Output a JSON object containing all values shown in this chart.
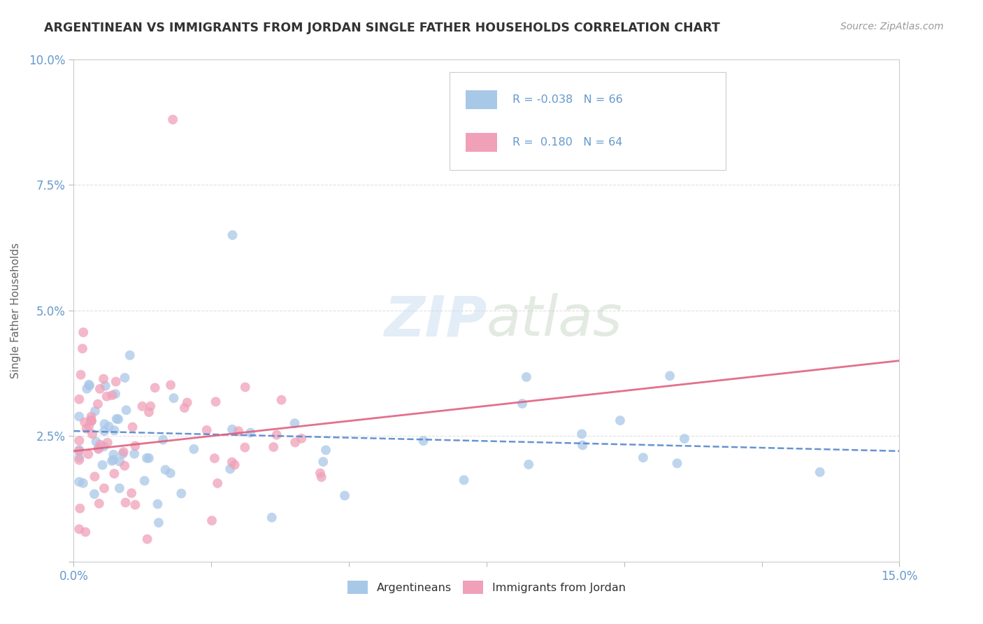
{
  "title": "ARGENTINEAN VS IMMIGRANTS FROM JORDAN SINGLE FATHER HOUSEHOLDS CORRELATION CHART",
  "source": "Source: ZipAtlas.com",
  "ylabel": "Single Father Households",
  "xlim": [
    0.0,
    0.15
  ],
  "ylim": [
    0.0,
    0.1
  ],
  "color_blue": "#A8C8E8",
  "color_pink": "#F0A0B8",
  "line_color_blue": "#5588CC",
  "line_color_pink": "#E06080",
  "grid_color": "#DDDDDD",
  "background_color": "#FFFFFF",
  "watermark_color": "#C8DCF0",
  "tick_color": "#6699CC",
  "title_color": "#333333",
  "source_color": "#999999",
  "ylabel_color": "#666666"
}
